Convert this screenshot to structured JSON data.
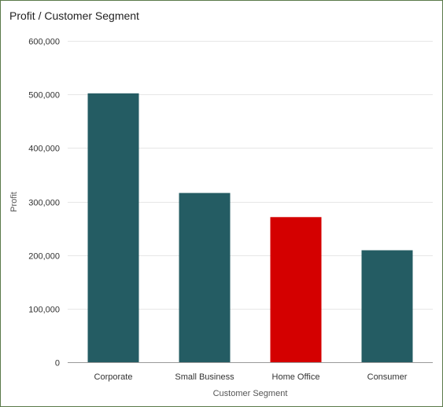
{
  "panel": {
    "title": "Profit / Customer Segment"
  },
  "colors": {
    "bar_default": "#245c63",
    "bar_highlight": "#d40000",
    "gridline": "#e6e6e6",
    "axis_line": "#9a9a9a",
    "panel_border": "#5a7a4a"
  },
  "chart_data": {
    "type": "bar",
    "title": "",
    "xlabel": "Customer Segment",
    "ylabel": "Profit",
    "categories": [
      "Corporate",
      "Small Business",
      "Home Office",
      "Consumer"
    ],
    "values": [
      502000,
      316000,
      271000,
      209000
    ],
    "highlighted_category": "Home Office",
    "ylim": [
      0,
      600000
    ],
    "yticks": [
      0,
      100000,
      200000,
      300000,
      400000,
      500000,
      600000
    ],
    "ytick_labels": [
      "0",
      "100,000",
      "200,000",
      "300,000",
      "400,000",
      "500,000",
      "600,000"
    ],
    "grid": true,
    "legend": "none"
  }
}
